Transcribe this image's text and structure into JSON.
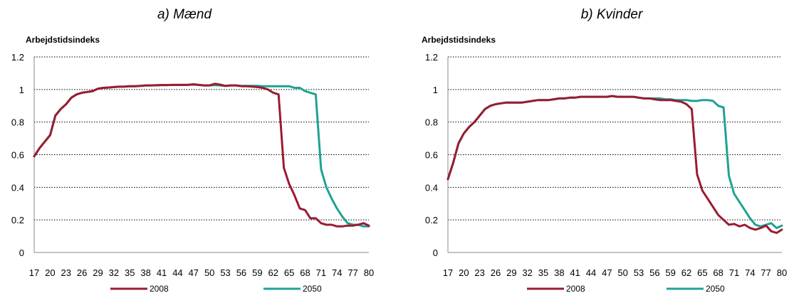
{
  "colors": {
    "s2008": "#9b1b30",
    "s2050": "#1fa294",
    "grid": "#000000",
    "axis": "#888888"
  },
  "chart_data": [
    {
      "type": "line",
      "title": "a) Mænd",
      "ylabel": "Arbejdstidsindeks",
      "xlabel": "",
      "ylim": [
        0,
        1.2
      ],
      "yticks": [
        "0",
        "0.2",
        "0.4",
        "0.6",
        "0.8",
        "1",
        "1.2"
      ],
      "xticks": [
        "17",
        "20",
        "23",
        "26",
        "29",
        "32",
        "35",
        "38",
        "41",
        "44",
        "47",
        "50",
        "53",
        "56",
        "59",
        "62",
        "65",
        "68",
        "71",
        "74",
        "77",
        "80"
      ],
      "grid": "horizontal dotted",
      "legend": "bottom",
      "x": [
        17,
        18,
        19,
        20,
        21,
        22,
        23,
        24,
        25,
        26,
        27,
        28,
        29,
        30,
        31,
        32,
        33,
        34,
        35,
        36,
        37,
        38,
        39,
        40,
        41,
        42,
        43,
        44,
        45,
        46,
        47,
        48,
        49,
        50,
        51,
        52,
        53,
        54,
        55,
        56,
        57,
        58,
        59,
        60,
        61,
        62,
        63,
        64,
        65,
        66,
        67,
        68,
        69,
        70,
        71,
        72,
        73,
        74,
        75,
        76,
        77,
        78,
        79,
        80
      ],
      "series": [
        {
          "name": "2008",
          "values": [
            0.59,
            0.64,
            0.68,
            0.72,
            0.84,
            0.88,
            0.91,
            0.95,
            0.97,
            0.98,
            0.985,
            0.99,
            1.005,
            1.01,
            1.012,
            1.015,
            1.017,
            1.018,
            1.02,
            1.02,
            1.022,
            1.025,
            1.025,
            1.026,
            1.027,
            1.027,
            1.028,
            1.028,
            1.028,
            1.029,
            1.032,
            1.028,
            1.025,
            1.025,
            1.035,
            1.03,
            1.022,
            1.025,
            1.025,
            1.02,
            1.02,
            1.018,
            1.015,
            1.01,
            1.0,
            0.98,
            0.97,
            0.52,
            0.42,
            0.35,
            0.27,
            0.26,
            0.21,
            0.21,
            0.18,
            0.17,
            0.17,
            0.16,
            0.16,
            0.165,
            0.165,
            0.17,
            0.18,
            0.165
          ]
        },
        {
          "name": "2050",
          "values": [
            0.59,
            0.64,
            0.68,
            0.72,
            0.84,
            0.88,
            0.91,
            0.95,
            0.97,
            0.98,
            0.985,
            0.99,
            1.005,
            1.01,
            1.012,
            1.015,
            1.017,
            1.018,
            1.02,
            1.02,
            1.022,
            1.025,
            1.025,
            1.026,
            1.027,
            1.027,
            1.028,
            1.028,
            1.028,
            1.029,
            1.03,
            1.028,
            1.025,
            1.025,
            1.027,
            1.025,
            1.022,
            1.025,
            1.025,
            1.022,
            1.022,
            1.022,
            1.022,
            1.02,
            1.02,
            1.02,
            1.02,
            1.02,
            1.02,
            1.01,
            1.01,
            0.99,
            0.98,
            0.97,
            0.51,
            0.4,
            0.33,
            0.27,
            0.22,
            0.18,
            0.17,
            0.17,
            0.16,
            0.16
          ]
        }
      ]
    },
    {
      "type": "line",
      "title": "b) Kvinder",
      "ylabel": "Arbejdstidsindeks",
      "xlabel": "",
      "ylim": [
        0,
        1.2
      ],
      "yticks": [
        "0",
        "0.2",
        "0.4",
        "0.6",
        "0.8",
        "1",
        "1.2"
      ],
      "xticks": [
        "17",
        "20",
        "23",
        "26",
        "29",
        "32",
        "35",
        "38",
        "41",
        "44",
        "47",
        "50",
        "53",
        "56",
        "59",
        "62",
        "65",
        "68",
        "71",
        "74",
        "77",
        "80"
      ],
      "grid": "horizontal dotted",
      "legend": "bottom",
      "x": [
        17,
        18,
        19,
        20,
        21,
        22,
        23,
        24,
        25,
        26,
        27,
        28,
        29,
        30,
        31,
        32,
        33,
        34,
        35,
        36,
        37,
        38,
        39,
        40,
        41,
        42,
        43,
        44,
        45,
        46,
        47,
        48,
        49,
        50,
        51,
        52,
        53,
        54,
        55,
        56,
        57,
        58,
        59,
        60,
        61,
        62,
        63,
        64,
        65,
        66,
        67,
        68,
        69,
        70,
        71,
        72,
        73,
        74,
        75,
        76,
        77,
        78,
        79,
        80
      ],
      "series": [
        {
          "name": "2008",
          "values": [
            0.45,
            0.55,
            0.67,
            0.73,
            0.77,
            0.8,
            0.84,
            0.88,
            0.9,
            0.91,
            0.915,
            0.92,
            0.92,
            0.92,
            0.92,
            0.925,
            0.93,
            0.935,
            0.935,
            0.935,
            0.94,
            0.945,
            0.945,
            0.95,
            0.95,
            0.955,
            0.955,
            0.955,
            0.955,
            0.955,
            0.955,
            0.96,
            0.955,
            0.955,
            0.955,
            0.955,
            0.95,
            0.945,
            0.945,
            0.94,
            0.935,
            0.935,
            0.935,
            0.93,
            0.925,
            0.91,
            0.88,
            0.48,
            0.38,
            0.33,
            0.28,
            0.23,
            0.2,
            0.17,
            0.175,
            0.16,
            0.17,
            0.15,
            0.14,
            0.15,
            0.165,
            0.13,
            0.12,
            0.14
          ]
        },
        {
          "name": "2050",
          "values": [
            0.45,
            0.55,
            0.67,
            0.73,
            0.77,
            0.8,
            0.84,
            0.88,
            0.9,
            0.91,
            0.915,
            0.92,
            0.92,
            0.92,
            0.92,
            0.925,
            0.93,
            0.935,
            0.935,
            0.935,
            0.94,
            0.945,
            0.945,
            0.95,
            0.95,
            0.955,
            0.955,
            0.955,
            0.955,
            0.955,
            0.955,
            0.96,
            0.955,
            0.955,
            0.955,
            0.955,
            0.95,
            0.945,
            0.945,
            0.945,
            0.945,
            0.94,
            0.94,
            0.935,
            0.935,
            0.935,
            0.93,
            0.93,
            0.935,
            0.935,
            0.93,
            0.9,
            0.89,
            0.47,
            0.36,
            0.31,
            0.26,
            0.21,
            0.17,
            0.16,
            0.17,
            0.18,
            0.15,
            0.165
          ]
        }
      ]
    }
  ]
}
